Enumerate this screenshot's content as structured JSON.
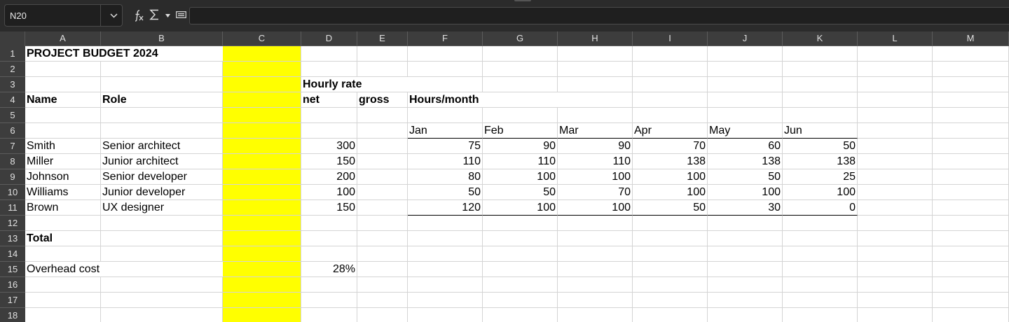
{
  "namebox": {
    "cell_ref": "N20"
  },
  "icons": {
    "dropdown": "chevron-down-icon",
    "function_wizard": "function-wizard-icon",
    "sum": "sum-icon",
    "sum_dropdown": "caret-down-icon",
    "formula": "equals-icon"
  },
  "colors": {
    "toolbar_bg": "#2b2b2b",
    "header_bg": "#3d3d3d",
    "highlight_column": "#ffff00"
  },
  "columns": [
    "A",
    "B",
    "C",
    "D",
    "E",
    "F",
    "G",
    "H",
    "I",
    "J",
    "K",
    "L",
    "M"
  ],
  "rows": [
    "1",
    "2",
    "3",
    "4",
    "5",
    "6",
    "7",
    "8",
    "9",
    "10",
    "11",
    "12",
    "13",
    "14",
    "15",
    "16",
    "17",
    "18"
  ],
  "sheet": {
    "title": "PROJECT BUDGET 2024",
    "hourly_rate_label": "Hourly rate",
    "hdr_name": "Name",
    "hdr_role": "Role",
    "hdr_net": "net",
    "hdr_gross": "gross",
    "hdr_hours": "Hours/month",
    "months": [
      "Jan",
      "Feb",
      "Mar",
      "Apr",
      "May",
      "Jun"
    ],
    "staff": [
      {
        "name": "Smith",
        "role": "Senior architect",
        "net": "300",
        "hours": [
          "75",
          "90",
          "90",
          "70",
          "60",
          "50"
        ]
      },
      {
        "name": "Miller",
        "role": "Junior architect",
        "net": "150",
        "hours": [
          "110",
          "110",
          "110",
          "138",
          "138",
          "138"
        ]
      },
      {
        "name": "Johnson",
        "role": "Senior developer",
        "net": "200",
        "hours": [
          "80",
          "100",
          "100",
          "100",
          "50",
          "25"
        ]
      },
      {
        "name": "Williams",
        "role": "Junior developer",
        "net": "100",
        "hours": [
          "50",
          "50",
          "70",
          "100",
          "100",
          "100"
        ]
      },
      {
        "name": "Brown",
        "role": "UX designer",
        "net": "150",
        "hours": [
          "120",
          "100",
          "100",
          "50",
          "30",
          "0"
        ]
      }
    ],
    "total_label": "Total",
    "overhead_label": "Overhead cost",
    "overhead_value": "28%"
  }
}
